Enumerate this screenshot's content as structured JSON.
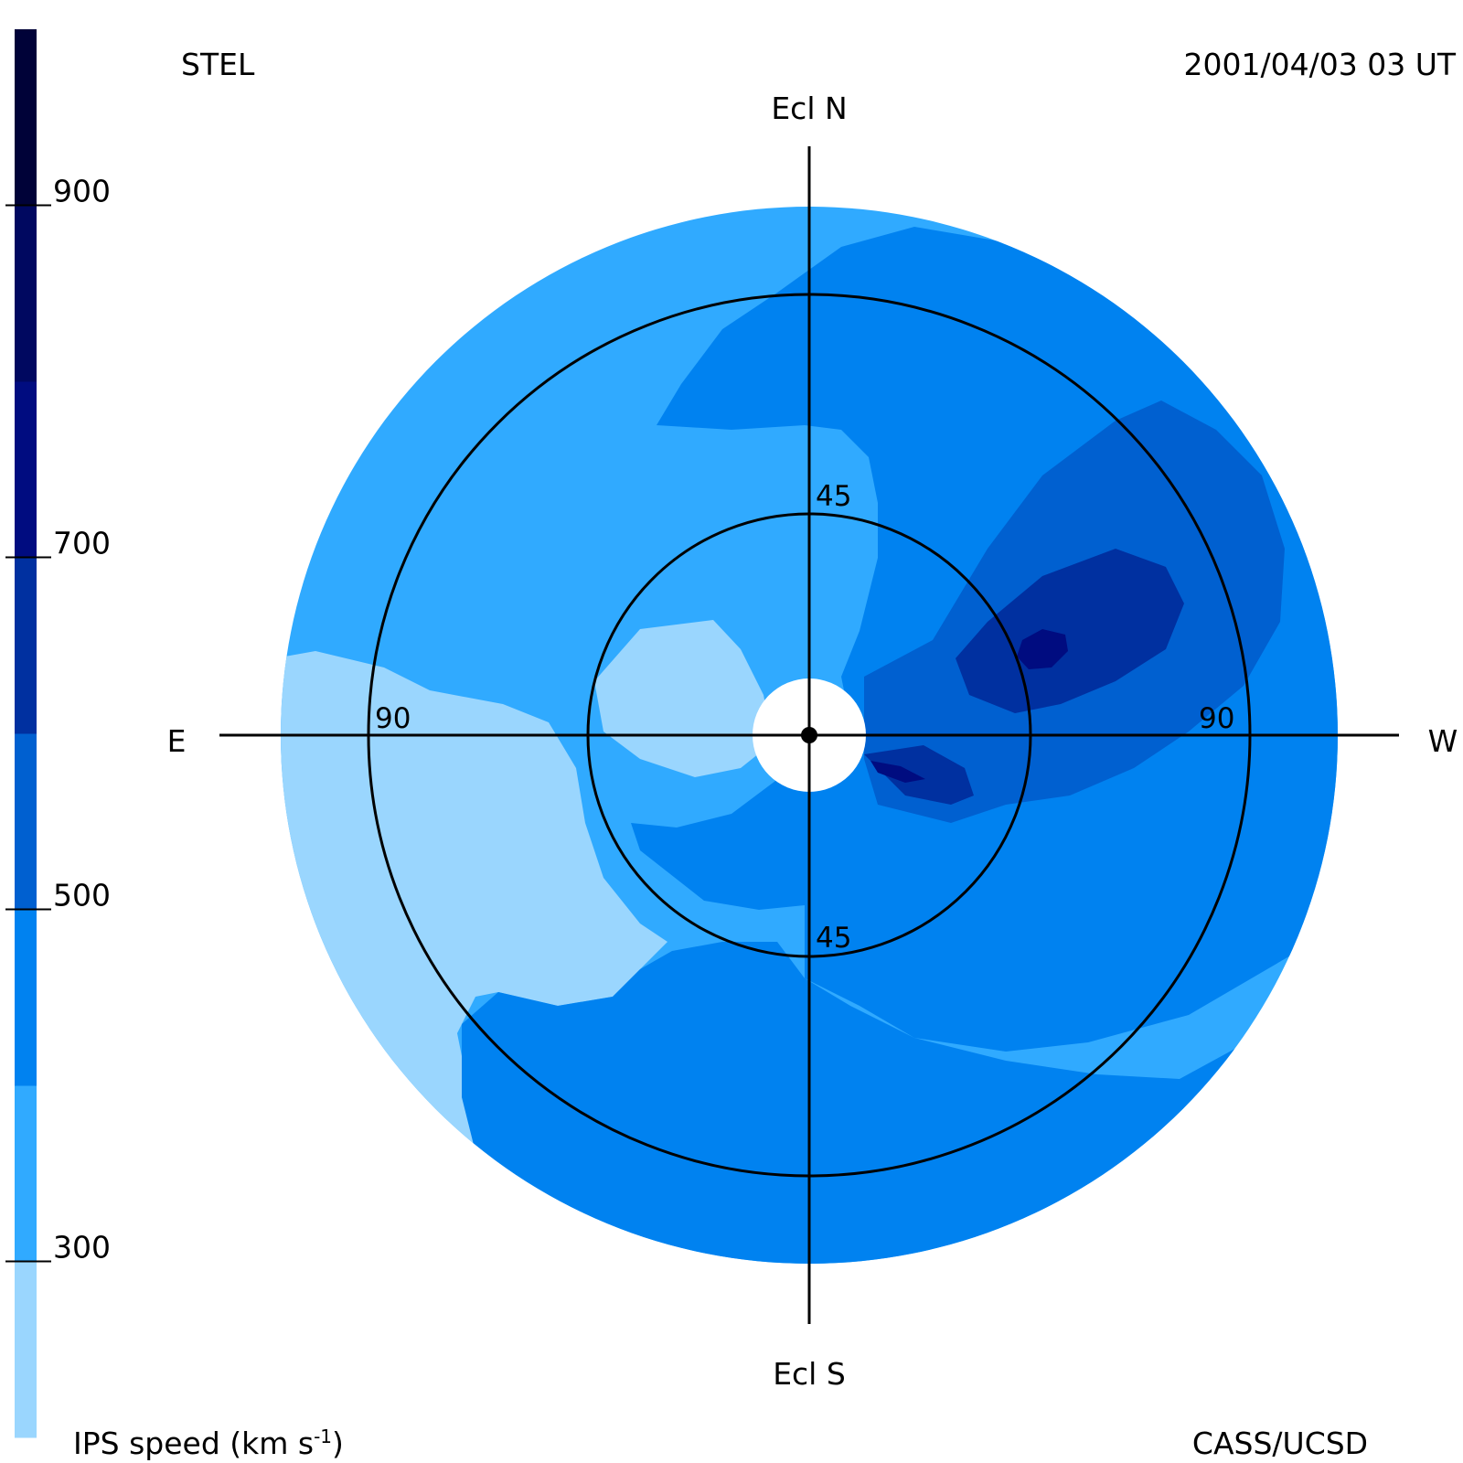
{
  "header": {
    "instrument": "STEL",
    "datetime": "2001/04/03 03 UT"
  },
  "footer": {
    "quantity": "IPS speed (km s",
    "unit_exponent": "-1",
    "quantity_close": ")",
    "credit": "CASS/UCSD"
  },
  "map": {
    "directions": {
      "north": "Ecl N",
      "south": "Ecl S",
      "east": "E",
      "west": "W"
    },
    "ring_labels": {
      "inner_top": "45",
      "inner_bottom": "45",
      "outer_left": "90",
      "outer_right": "90"
    },
    "inner_ring_elongation_deg": 45,
    "outer_ring_elongation_deg": 90
  },
  "colorbar": {
    "ticks": [
      "900",
      "700",
      "500",
      "300"
    ],
    "tick_values": [
      900,
      700,
      500,
      300
    ],
    "range_km_s": [
      200,
      1000
    ],
    "levels": [
      {
        "from": 200,
        "to": 300,
        "color": "#9ad6fe"
      },
      {
        "from": 300,
        "to": 400,
        "color": "#30aaff"
      },
      {
        "from": 400,
        "to": 500,
        "color": "#0082f0"
      },
      {
        "from": 500,
        "to": 600,
        "color": "#0060d0"
      },
      {
        "from": 600,
        "to": 700,
        "color": "#0030a0"
      },
      {
        "from": 700,
        "to": 800,
        "color": "#000c80"
      },
      {
        "from": 800,
        "to": 900,
        "color": "#000860"
      },
      {
        "from": 900,
        "to": 1000,
        "color": "#000238"
      }
    ]
  }
}
